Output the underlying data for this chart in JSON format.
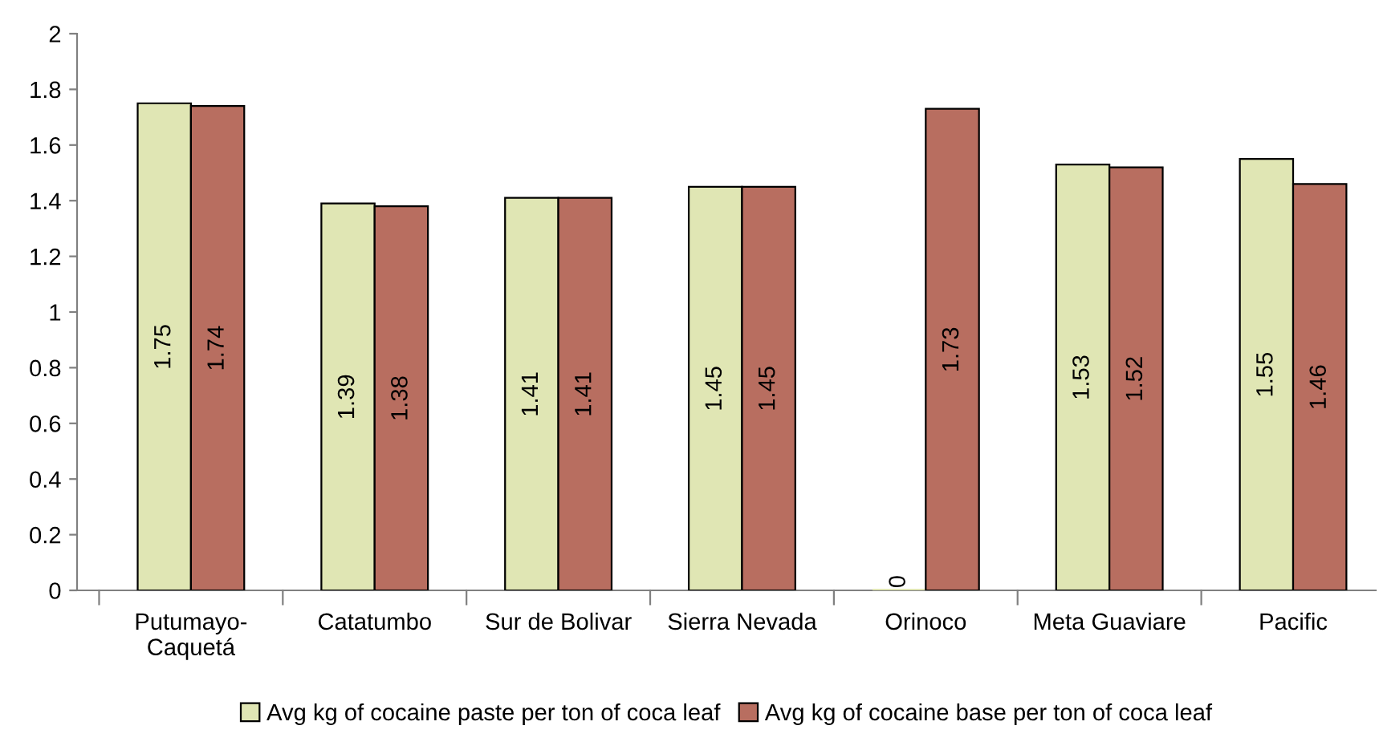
{
  "chart_data": {
    "type": "bar",
    "categories": [
      "Putumayo-\nCaquetá",
      "Catatumbo",
      "Sur de Bolivar",
      "Sierra Nevada",
      "Orinoco",
      "Meta Guaviare",
      "Pacific"
    ],
    "series": [
      {
        "name": "Avg kg of cocaine paste per ton of coca leaf",
        "color": "#e0e6b4",
        "values": [
          1.75,
          1.39,
          1.41,
          1.45,
          0,
          1.53,
          1.55
        ]
      },
      {
        "name": "Avg kg of cocaine base per ton of coca leaf",
        "color": "#b86e60",
        "values": [
          1.74,
          1.38,
          1.41,
          1.45,
          1.73,
          1.52,
          1.46
        ]
      }
    ],
    "ylim": [
      0,
      2
    ],
    "yticks": [
      0,
      0.2,
      0.4,
      0.6,
      0.8,
      1,
      1.2,
      1.4,
      1.6,
      1.8,
      2
    ],
    "data_labels": true,
    "grid": false,
    "legend": "bottom"
  }
}
